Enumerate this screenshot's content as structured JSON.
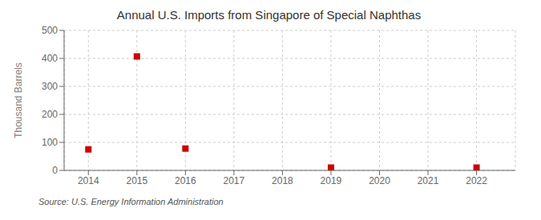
{
  "chart_data": {
    "type": "scatter",
    "title": "Annual U.S. Imports from Singapore of Special Naphthas",
    "y_label": "Thousand Barrels",
    "annotations": [
      "Source: U.S. Energy Information Administration"
    ],
    "x": [
      2014,
      2015,
      2016,
      2019,
      2022
    ],
    "values": [
      75,
      407,
      78,
      10,
      10
    ],
    "xlim": [
      2013.5,
      2022.8
    ],
    "ylim": [
      0,
      500
    ],
    "xticks": [
      2014,
      2015,
      2016,
      2017,
      2018,
      2019,
      2020,
      2021,
      2022
    ],
    "yticks": [
      0,
      100,
      200,
      300,
      400,
      500
    ],
    "color": "#cc0000",
    "marker": "square",
    "grid": true
  }
}
